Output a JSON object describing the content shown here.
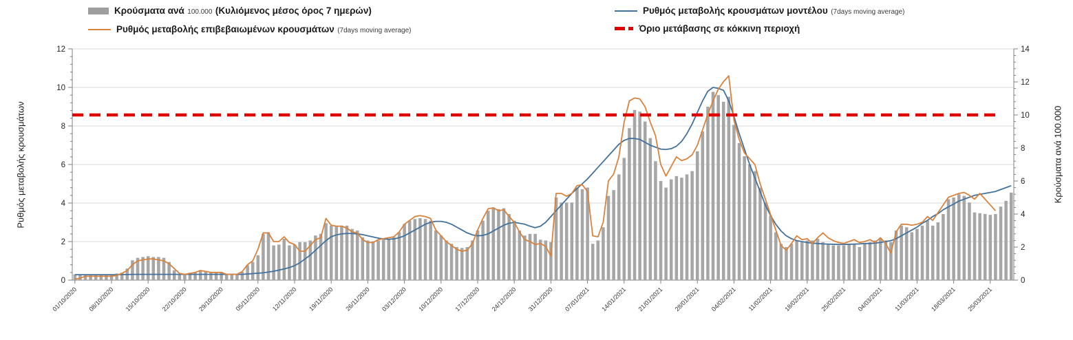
{
  "legend": {
    "bars": {
      "main": "Κρούσματα ανά",
      "num": "100.000",
      "paren": "(Κυλιόμενος μέσος όρος 7 ημερών)"
    },
    "confirmed": {
      "main": "Ρυθμός μεταβολής επιβεβαιωμένων κρουσμάτων",
      "paren": "(7days moving average)"
    },
    "model": {
      "main": "Ρυθμός μεταβολής κρουσμάτων μοντέλου",
      "paren": "(7days moving average)"
    },
    "threshold": {
      "main": "Όριο μετάβασης σε κόκκινη περιοχή"
    }
  },
  "axes": {
    "left_title": "Ρυθμός μεταβολής κρουσμάτων",
    "right_title": "Κρούσματα ανά 100.000"
  },
  "colors": {
    "bar": "#a6a6a6",
    "confirmed_line": "#d9823c",
    "model_line": "#41719c",
    "threshold_line": "#e00000",
    "grid": "#d9d9d9",
    "axis": "#808080"
  },
  "chart_data": {
    "type": "combo-bar-line",
    "start_date": "01/10/2020",
    "x_tick_every_days": 7,
    "x_tick_labels": [
      "01/10/2020",
      "08/10/2020",
      "15/10/2020",
      "22/10/2020",
      "29/10/2020",
      "05/11/2020",
      "12/11/2020",
      "19/11/2020",
      "26/11/2020",
      "03/12/2020",
      "10/12/2020",
      "17/12/2020",
      "24/12/2020",
      "31/12/2020",
      "07/01/2021",
      "14/01/2021",
      "21/01/2021",
      "28/01/2021",
      "04/02/2021",
      "11/02/2021",
      "18/02/2021",
      "25/02/2021",
      "04/03/2021",
      "11/03/2021",
      "18/03/2021",
      "25/03/2021"
    ],
    "left_axis": {
      "label": "Ρυθμός μεταβολής κρουσμάτων",
      "range": [
        0,
        12
      ],
      "major": 2,
      "minor": 0.4
    },
    "right_axis": {
      "label": "Κρούσματα ανά 100.000",
      "range": [
        0,
        14
      ],
      "major": 2,
      "minor": 0.4
    },
    "grid": true,
    "legend_position": "top",
    "series": [
      {
        "name": "Κρούσματα ανά 100.000 (Κυλιόμενος μέσος όρος 7 ημερών)",
        "type": "bar",
        "axis": "right",
        "color": "#a6a6a6",
        "values": [
          0.35,
          0.35,
          0.3,
          0.35,
          0.35,
          0.3,
          0.35,
          0.35,
          0.4,
          0.45,
          0.7,
          1.2,
          1.35,
          1.4,
          1.45,
          1.4,
          1.4,
          1.35,
          1.1,
          0.6,
          0.35,
          0.35,
          0.45,
          0.45,
          0.55,
          0.55,
          0.5,
          0.5,
          0.5,
          0.35,
          0.35,
          0.35,
          0.5,
          0.9,
          1.1,
          1.5,
          2.8,
          2.9,
          2.1,
          2.15,
          2.5,
          2.1,
          2.15,
          2.3,
          2.3,
          2.4,
          2.7,
          2.8,
          3.45,
          3.3,
          3.25,
          3.3,
          3.3,
          3.1,
          3.0,
          2.6,
          2.4,
          2.35,
          2.4,
          2.45,
          2.5,
          2.6,
          2.9,
          3.4,
          3.6,
          3.7,
          3.75,
          3.7,
          3.6,
          3.0,
          2.7,
          2.4,
          2.2,
          2.0,
          1.95,
          2.0,
          2.4,
          3.0,
          3.6,
          4.2,
          4.4,
          4.3,
          4.35,
          4.0,
          3.6,
          3.0,
          2.7,
          2.8,
          2.8,
          2.45,
          2.4,
          2.3,
          5.0,
          4.7,
          4.7,
          4.7,
          5.6,
          5.5,
          5.6,
          2.2,
          2.4,
          3.2,
          5.1,
          5.45,
          6.4,
          7.4,
          9.2,
          10.3,
          10.2,
          9.6,
          8.6,
          7.2,
          6.0,
          5.6,
          6.1,
          6.3,
          6.2,
          6.4,
          6.6,
          7.8,
          9.0,
          10.5,
          11.4,
          11.2,
          10.8,
          11.1,
          9.4,
          8.3,
          7.5,
          7.0,
          6.6,
          5.6,
          4.7,
          3.9,
          2.9,
          2.2,
          2.0,
          2.2,
          2.4,
          2.3,
          2.4,
          2.4,
          2.5,
          2.3,
          2.2,
          2.1,
          2.1,
          2.1,
          2.15,
          2.2,
          2.0,
          2.2,
          2.3,
          2.4,
          2.5,
          2.4,
          2.3,
          3.0,
          3.3,
          3.2,
          2.9,
          3.1,
          3.3,
          3.6,
          3.3,
          3.5,
          4.0,
          4.9,
          5.0,
          5.2,
          5.1,
          4.7,
          4.1,
          4.05,
          4.0,
          3.95,
          4.0,
          4.45,
          4.8,
          5.3
        ]
      },
      {
        "name": "Ρυθμός μεταβολής κρουσμάτων μοντέλου (7days moving average)",
        "type": "line",
        "axis": "left",
        "color": "#41719c",
        "values": [
          0.28,
          0.28,
          0.28,
          0.28,
          0.28,
          0.28,
          0.28,
          0.28,
          0.28,
          0.29,
          0.29,
          0.3,
          0.3,
          0.3,
          0.3,
          0.3,
          0.3,
          0.3,
          0.3,
          0.3,
          0.3,
          0.3,
          0.3,
          0.3,
          0.3,
          0.3,
          0.3,
          0.3,
          0.3,
          0.3,
          0.3,
          0.3,
          0.3,
          0.32,
          0.34,
          0.36,
          0.38,
          0.42,
          0.46,
          0.52,
          0.58,
          0.65,
          0.75,
          0.9,
          1.1,
          1.3,
          1.55,
          1.8,
          2.05,
          2.25,
          2.35,
          2.4,
          2.42,
          2.42,
          2.4,
          2.36,
          2.3,
          2.24,
          2.18,
          2.14,
          2.12,
          2.14,
          2.2,
          2.3,
          2.45,
          2.6,
          2.75,
          2.9,
          3.0,
          3.05,
          3.05,
          3.0,
          2.9,
          2.75,
          2.6,
          2.45,
          2.35,
          2.3,
          2.32,
          2.4,
          2.55,
          2.7,
          2.85,
          2.95,
          3.0,
          2.95,
          2.9,
          2.8,
          2.72,
          2.8,
          3.0,
          3.3,
          3.6,
          3.9,
          4.2,
          4.5,
          4.75,
          5.0,
          5.25,
          5.55,
          5.85,
          6.15,
          6.45,
          6.75,
          7.05,
          7.25,
          7.35,
          7.35,
          7.3,
          7.15,
          7.0,
          6.9,
          6.8,
          6.78,
          6.82,
          6.95,
          7.2,
          7.6,
          8.1,
          8.7,
          9.3,
          9.8,
          10.0,
          9.95,
          9.85,
          9.3,
          8.5,
          7.6,
          6.8,
          6.0,
          5.3,
          4.6,
          3.9,
          3.35,
          2.9,
          2.55,
          2.3,
          2.15,
          2.05,
          2.0,
          1.95,
          1.92,
          1.9,
          1.88,
          1.87,
          1.86,
          1.85,
          1.85,
          1.86,
          1.87,
          1.88,
          1.9,
          1.9,
          1.92,
          1.95,
          2.0,
          2.05,
          2.15,
          2.3,
          2.45,
          2.6,
          2.75,
          2.95,
          3.1,
          3.3,
          3.45,
          3.65,
          3.8,
          3.95,
          4.1,
          4.2,
          4.3,
          4.4,
          4.45,
          4.5,
          4.55,
          4.6,
          4.7,
          4.8,
          4.9
        ]
      },
      {
        "name": "Ρυθμός μεταβολής επιβεβαιωμένων κρουσμάτων (7days moving average)",
        "type": "line",
        "axis": "left",
        "color": "#d9823c",
        "values": [
          0.05,
          0.1,
          0.2,
          0.2,
          0.2,
          0.2,
          0.2,
          0.2,
          0.25,
          0.35,
          0.5,
          0.8,
          1.0,
          1.05,
          1.1,
          1.1,
          1.05,
          1.0,
          0.85,
          0.6,
          0.35,
          0.3,
          0.35,
          0.4,
          0.5,
          0.45,
          0.4,
          0.4,
          0.4,
          0.3,
          0.3,
          0.3,
          0.45,
          0.8,
          1.0,
          1.6,
          2.45,
          2.45,
          2.0,
          2.0,
          2.25,
          1.95,
          1.85,
          1.5,
          1.5,
          1.8,
          2.1,
          2.2,
          3.2,
          2.85,
          2.8,
          2.8,
          2.7,
          2.5,
          2.45,
          2.1,
          1.95,
          1.95,
          2.1,
          2.15,
          2.2,
          2.25,
          2.5,
          2.9,
          3.1,
          3.3,
          3.35,
          3.3,
          3.2,
          2.6,
          2.3,
          2.0,
          1.8,
          1.6,
          1.5,
          1.55,
          1.9,
          2.6,
          3.2,
          3.7,
          3.75,
          3.6,
          3.65,
          3.3,
          3.0,
          2.5,
          2.1,
          2.0,
          1.85,
          1.9,
          1.75,
          1.25,
          4.5,
          4.5,
          4.35,
          4.5,
          4.9,
          4.95,
          4.6,
          2.3,
          2.25,
          3.0,
          5.15,
          5.5,
          6.4,
          8.2,
          9.3,
          9.45,
          9.4,
          9.0,
          8.2,
          7.5,
          6.0,
          5.4,
          5.9,
          6.4,
          6.2,
          6.3,
          6.5,
          7.0,
          7.8,
          8.6,
          9.3,
          9.9,
          10.3,
          10.6,
          8.3,
          7.3,
          6.6,
          6.3,
          6.0,
          5.0,
          4.2,
          3.4,
          2.6,
          1.8,
          1.55,
          1.9,
          2.3,
          2.1,
          2.15,
          1.9,
          2.2,
          2.45,
          2.2,
          2.05,
          1.95,
          1.9,
          2.0,
          2.1,
          1.95,
          2.0,
          2.1,
          1.95,
          2.2,
          1.9,
          1.4,
          2.5,
          2.9,
          2.9,
          2.85,
          2.9,
          3.0,
          3.3,
          3.1,
          3.5,
          3.9,
          4.3,
          4.4,
          4.5,
          4.55,
          4.4,
          4.2,
          4.5,
          4.2,
          3.9,
          3.6,
          null,
          null,
          null
        ]
      },
      {
        "name": "Όριο μετάβασης σε κόκκινη περιοχή",
        "type": "threshold",
        "axis": "right",
        "color": "#e00000",
        "value": 10
      }
    ]
  }
}
